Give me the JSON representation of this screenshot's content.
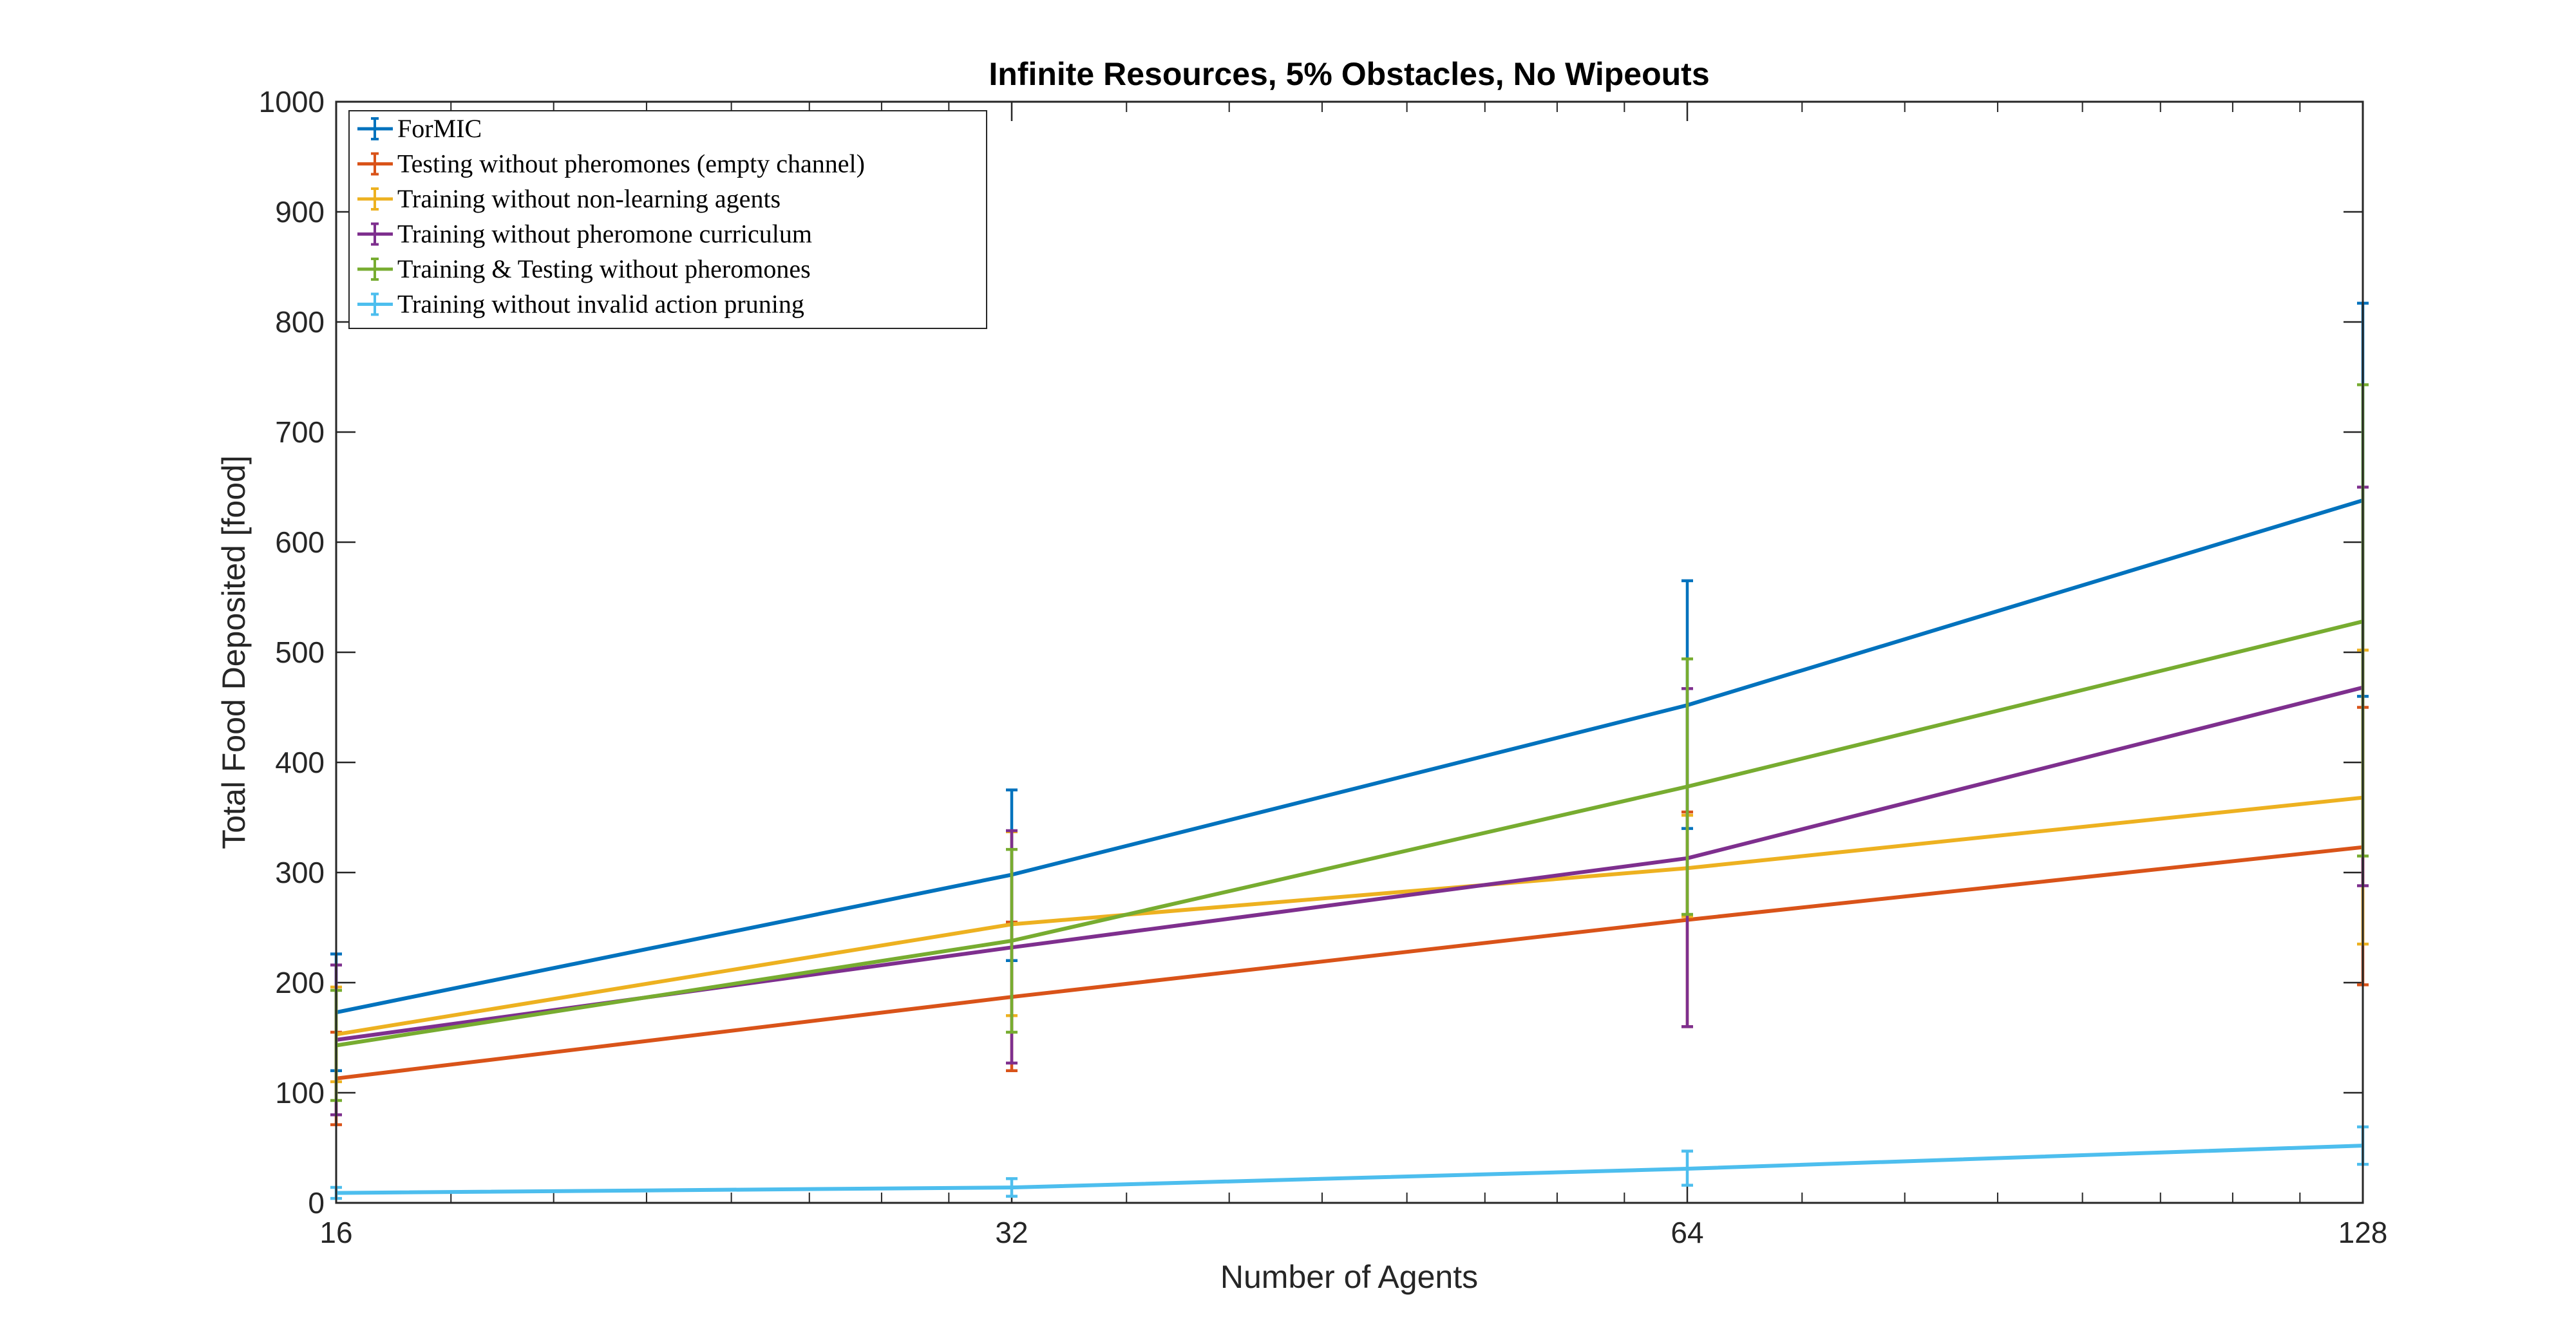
{
  "chart_data": {
    "type": "line",
    "title": "Infinite Resources, 5% Obstacles, No Wipeouts",
    "xlabel": "Number of Agents",
    "ylabel": "Total Food Deposited [food]",
    "x_scale": "log2",
    "x": [
      16,
      32,
      64,
      128
    ],
    "x_ticks": [
      "16",
      "32",
      "64",
      "128"
    ],
    "xlim": [
      16,
      128
    ],
    "ylim": [
      0,
      1000
    ],
    "y_ticks": [
      "0",
      "100",
      "200",
      "300",
      "400",
      "500",
      "600",
      "700",
      "800",
      "900",
      "1000"
    ],
    "grid": false,
    "legend_position": "top-left",
    "series": [
      {
        "name": "ForMIC",
        "color": "#0072BD",
        "values": [
          173,
          298,
          452,
          638
        ],
        "err_low": [
          120,
          220,
          340,
          460
        ],
        "err_high": [
          226,
          375,
          565,
          817
        ]
      },
      {
        "name": "Testing without pheromones (empty channel)",
        "color": "#D95319",
        "values": [
          113,
          187,
          257,
          323
        ],
        "err_low": [
          71,
          120,
          160,
          198
        ],
        "err_high": [
          155,
          255,
          355,
          450
        ]
      },
      {
        "name": "Training without non-learning agents",
        "color": "#EDB120",
        "values": [
          153,
          253,
          304,
          368
        ],
        "err_low": [
          110,
          170,
          260,
          235
        ],
        "err_high": [
          196,
          337,
          352,
          502
        ]
      },
      {
        "name": "Training without pheromone curriculum",
        "color": "#7E2F8E",
        "values": [
          148,
          232,
          313,
          468
        ],
        "err_low": [
          80,
          127,
          160,
          288
        ],
        "err_high": [
          216,
          338,
          467,
          650
        ]
      },
      {
        "name": "Training & Testing without pheromones",
        "color": "#77AC30",
        "values": [
          143,
          238,
          378,
          528
        ],
        "err_low": [
          93,
          155,
          262,
          315
        ],
        "err_high": [
          193,
          321,
          494,
          743
        ]
      },
      {
        "name": "Training without invalid action pruning",
        "color": "#4DBEEE",
        "values": [
          9,
          14,
          31,
          52
        ],
        "err_low": [
          4,
          6,
          16,
          35
        ],
        "err_high": [
          14,
          22,
          47,
          69
        ]
      }
    ]
  }
}
